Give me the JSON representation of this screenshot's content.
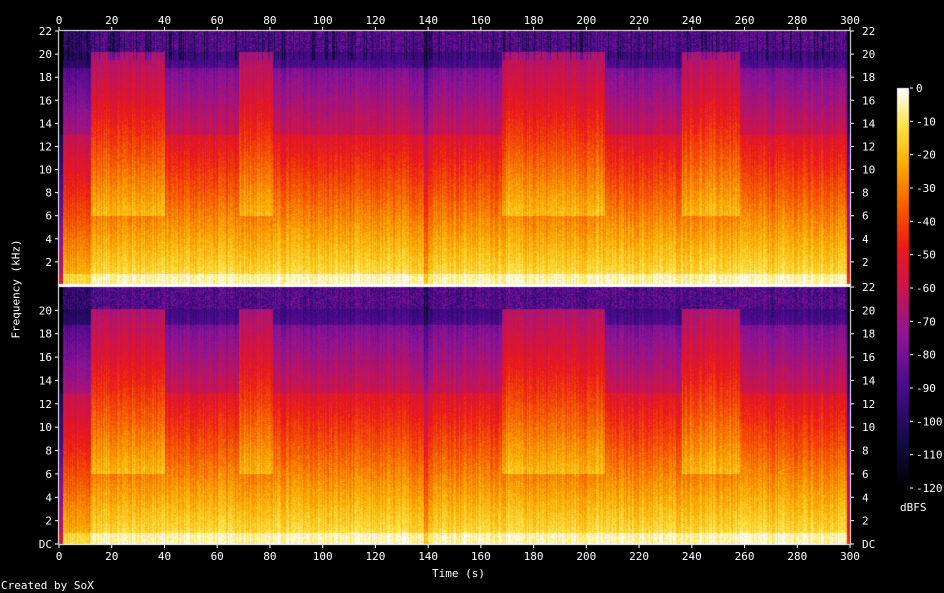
{
  "chart_data": {
    "type": "heatmap",
    "title": "",
    "xlabel": "Time (s)",
    "ylabel": "Frequency (kHz)",
    "xlim": [
      0,
      300
    ],
    "ylim_khz": [
      0,
      22
    ],
    "x_ticks": [
      "0",
      "20",
      "40",
      "60",
      "80",
      "100",
      "120",
      "140",
      "160",
      "180",
      "200",
      "220",
      "240",
      "260",
      "280",
      "300"
    ],
    "y_ticks_top": [
      "2",
      "4",
      "6",
      "8",
      "10",
      "12",
      "14",
      "16",
      "18",
      "20",
      "22"
    ],
    "y_ticks_bottom": [
      "DC",
      "2",
      "4",
      "6",
      "8",
      "10",
      "12",
      "14",
      "16",
      "18",
      "20"
    ],
    "y_ticks_right_top": [
      "2",
      "4",
      "6",
      "8",
      "10",
      "12",
      "14",
      "16",
      "18",
      "20",
      "22"
    ],
    "y_ticks_right_bottom": [
      "DC",
      "2",
      "4",
      "6",
      "8",
      "10",
      "12",
      "14",
      "16",
      "18",
      "20",
      "22"
    ],
    "channels": 2,
    "colorbar": {
      "label": "dBFS",
      "ticks": [
        "0",
        "-10",
        "-20",
        "-30",
        "-40",
        "-50",
        "-60",
        "-70",
        "-80",
        "-90",
        "-100",
        "-110",
        "-120"
      ],
      "range": [
        -120,
        0
      ]
    },
    "loud_segments_s": [
      [
        12,
        40
      ],
      [
        68,
        81
      ],
      [
        168,
        207
      ],
      [
        236,
        258
      ]
    ],
    "colors": {
      "background": "#000000",
      "palette": [
        "#000000",
        "#1a0a4a",
        "#4a0a8a",
        "#8a1090",
        "#c01050",
        "#e81818",
        "#f05000",
        "#f8a000",
        "#ffe040",
        "#ffffff"
      ]
    }
  },
  "footer": {
    "credit": "Created by SoX"
  }
}
